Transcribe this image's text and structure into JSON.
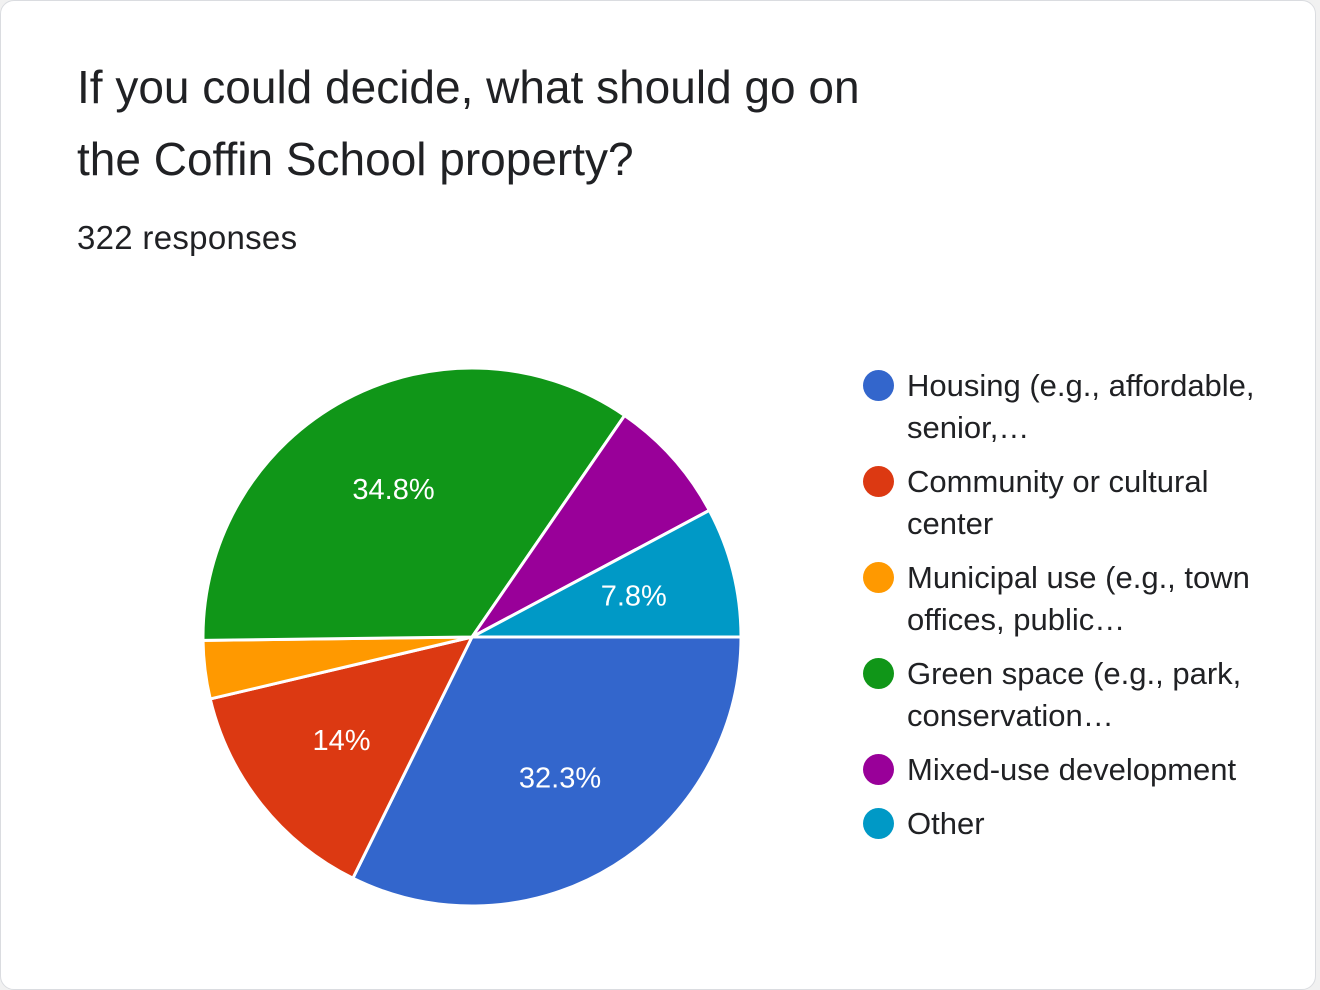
{
  "header": {
    "title": "If you could decide, what should go on the Coffin School property?",
    "responses": "322 responses"
  },
  "colors": {
    "housing": "#3366cc",
    "community": "#dc3912",
    "municipal": "#ff9900",
    "green": "#109618",
    "mixed": "#990099",
    "other": "#0099c6"
  },
  "chart_data": {
    "type": "pie",
    "title": "If you could decide, what should go on the Coffin School property?",
    "subtitle": "322 responses",
    "legend": "right",
    "slices": [
      {
        "label": "Housing (e.g., affordable, senior,…",
        "value": 32.3,
        "data_label": "32.3%",
        "color": "#3366cc"
      },
      {
        "label": "Community or cultural center",
        "value": 14,
        "data_label": "14%",
        "color": "#dc3912"
      },
      {
        "label": "Municipal use (e.g., town offices, public…",
        "value": 3.5,
        "data_label": "",
        "color": "#ff9900"
      },
      {
        "label": "Green space (e.g., park, conservation…",
        "value": 34.8,
        "data_label": "34.8%",
        "color": "#109618"
      },
      {
        "label": "Mixed-use development",
        "value": 7.6,
        "data_label": "",
        "color": "#990099"
      },
      {
        "label": "Other",
        "value": 7.8,
        "data_label": "7.8%",
        "color": "#0099c6"
      }
    ]
  },
  "legend": {
    "items": [
      {
        "label": "Housing (e.g., affordable, senior,…",
        "color": "#3366cc"
      },
      {
        "label": "Community or cultural center",
        "color": "#dc3912"
      },
      {
        "label": "Municipal use (e.g., town offices, public…",
        "color": "#ff9900"
      },
      {
        "label": "Green space (e.g., park, conservation…",
        "color": "#109618"
      },
      {
        "label": "Mixed-use development",
        "color": "#990099"
      },
      {
        "label": "Other",
        "color": "#0099c6"
      }
    ]
  }
}
